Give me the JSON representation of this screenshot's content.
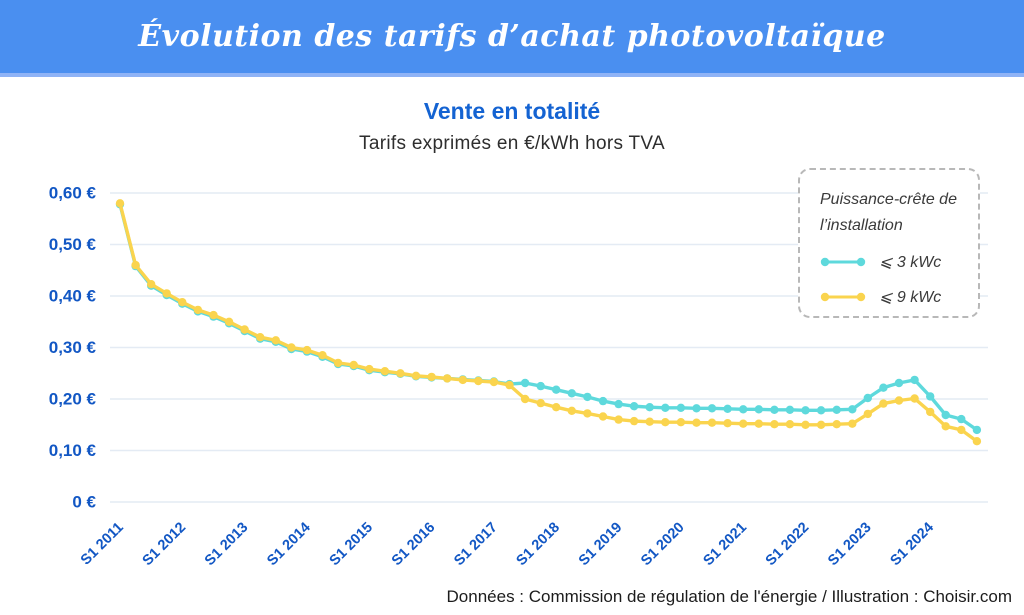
{
  "banner": {
    "title": "Évolution des tarifs d’achat photovoltaïque"
  },
  "chart": {
    "title": "Vente en totalité",
    "subtitle": "Tarifs exprimés en €/kWh hors TVA"
  },
  "legend": {
    "title": "Puissance-crête de l’installation"
  },
  "footer": {
    "credits": "Données : Commission de régulation de l'énergie / Illustration : Choisir.com"
  },
  "colors": {
    "banner_blue": "#4A8FF0",
    "banner_edge": "#8FB3F6",
    "title_blue": "#1463D2",
    "axis_blue": "#1257C4",
    "grid": "#E4EBF4",
    "cyan": "#5ED9DC",
    "yellow": "#FAD44E",
    "text_dark": "#2e2e2e",
    "legend_text": "#3a3a3a"
  },
  "chart_data": {
    "type": "line",
    "title": "Vente en totalité",
    "subtitle": "Tarifs exprimés en €/kWh hors TVA",
    "ylabel": "€/kWh hors TVA",
    "ylim": [
      0,
      0.6
    ],
    "grid": "horizontal",
    "legend_position": "top-right",
    "x_unit": "trimestre (4 points par an, de 2011 à 2024)",
    "x_tick_every": 4,
    "x_tick_labels": [
      "S1 2011",
      "S1 2012",
      "S1 2013",
      "S1 2014",
      "S1 2015",
      "S1 2016",
      "S1 2017",
      "S1 2018",
      "S1 2019",
      "S1 2020",
      "S1 2021",
      "S1 2022",
      "S1 2023",
      "S1 2024"
    ],
    "y_tick_labels": [
      "0 €",
      "0,10 €",
      "0,20 €",
      "0,30 €",
      "0,40 €",
      "0,50 €",
      "0,60 €"
    ],
    "series": [
      {
        "id": "3kwc",
        "name": "⩽ 3 kWc",
        "color": "#5ED9DC",
        "values": [
          0.578,
          0.458,
          0.42,
          0.402,
          0.385,
          0.37,
          0.36,
          0.347,
          0.332,
          0.317,
          0.311,
          0.297,
          0.292,
          0.282,
          0.268,
          0.264,
          0.256,
          0.252,
          0.249,
          0.244,
          0.242,
          0.24,
          0.238,
          0.236,
          0.234,
          0.229,
          0.231,
          0.225,
          0.218,
          0.211,
          0.204,
          0.196,
          0.19,
          0.186,
          0.184,
          0.183,
          0.183,
          0.182,
          0.182,
          0.181,
          0.18,
          0.18,
          0.179,
          0.179,
          0.178,
          0.178,
          0.179,
          0.18,
          0.202,
          0.222,
          0.231,
          0.237,
          0.205,
          0.169,
          0.161,
          0.14
        ]
      },
      {
        "id": "9kwc",
        "name": "⩽ 9 kWc",
        "color": "#FAD44E",
        "values": [
          0.58,
          0.46,
          0.423,
          0.405,
          0.388,
          0.373,
          0.363,
          0.35,
          0.335,
          0.32,
          0.314,
          0.3,
          0.295,
          0.285,
          0.27,
          0.266,
          0.258,
          0.254,
          0.25,
          0.245,
          0.243,
          0.24,
          0.237,
          0.235,
          0.233,
          0.227,
          0.2,
          0.192,
          0.184,
          0.177,
          0.172,
          0.166,
          0.16,
          0.157,
          0.156,
          0.155,
          0.155,
          0.154,
          0.154,
          0.153,
          0.152,
          0.152,
          0.151,
          0.151,
          0.15,
          0.15,
          0.151,
          0.152,
          0.171,
          0.191,
          0.197,
          0.201,
          0.175,
          0.147,
          0.14,
          0.118
        ]
      }
    ]
  }
}
